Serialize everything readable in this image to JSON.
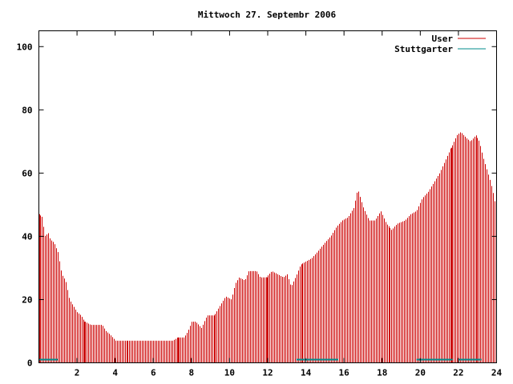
{
  "chart_data": {
    "type": "bar",
    "title": "Mittwoch 27. Septembr 2006",
    "xlabel": "",
    "ylabel": "",
    "xlim": [
      0,
      24
    ],
    "ylim": [
      0,
      105
    ],
    "x_ticks": [
      2,
      4,
      6,
      8,
      10,
      12,
      14,
      16,
      18,
      20,
      22,
      24
    ],
    "x_tick_labels": [
      "2",
      "4",
      "6",
      "8",
      "10",
      "12",
      "14",
      "16",
      "18",
      "20",
      "22",
      "24"
    ],
    "y_ticks": [
      0,
      20,
      40,
      60,
      80,
      100
    ],
    "y_tick_labels": [
      "0",
      "20",
      "40",
      "60",
      "80",
      "100"
    ],
    "grid": false,
    "legend_position": "top-right",
    "series": [
      {
        "name": "User",
        "color": "#cc0000",
        "keypoints": [
          [
            0.0,
            47
          ],
          [
            0.2,
            46
          ],
          [
            0.3,
            40
          ],
          [
            0.5,
            41
          ],
          [
            0.6,
            39
          ],
          [
            0.8,
            38
          ],
          [
            1.0,
            35
          ],
          [
            1.2,
            28
          ],
          [
            1.4,
            26
          ],
          [
            1.6,
            20
          ],
          [
            1.8,
            18
          ],
          [
            2.0,
            16
          ],
          [
            2.2,
            15
          ],
          [
            2.4,
            13
          ],
          [
            2.7,
            12
          ],
          [
            3.3,
            12
          ],
          [
            3.5,
            10
          ],
          [
            3.7,
            9
          ],
          [
            4.0,
            7
          ],
          [
            7.0,
            7
          ],
          [
            7.3,
            8
          ],
          [
            7.6,
            8
          ],
          [
            7.8,
            10
          ],
          [
            8.0,
            13
          ],
          [
            8.2,
            13
          ],
          [
            8.5,
            11
          ],
          [
            8.8,
            15
          ],
          [
            9.2,
            15
          ],
          [
            9.5,
            18
          ],
          [
            9.8,
            21
          ],
          [
            10.1,
            20
          ],
          [
            10.3,
            25
          ],
          [
            10.5,
            27
          ],
          [
            10.8,
            26
          ],
          [
            11.0,
            29
          ],
          [
            11.4,
            29
          ],
          [
            11.6,
            27
          ],
          [
            11.9,
            27
          ],
          [
            12.2,
            29
          ],
          [
            12.5,
            28
          ],
          [
            12.8,
            27
          ],
          [
            13.0,
            28
          ],
          [
            13.2,
            24
          ],
          [
            13.5,
            28
          ],
          [
            13.7,
            31
          ],
          [
            14.0,
            32
          ],
          [
            14.3,
            33
          ],
          [
            14.6,
            35
          ],
          [
            15.0,
            38
          ],
          [
            15.3,
            40
          ],
          [
            15.6,
            43
          ],
          [
            15.9,
            45
          ],
          [
            16.2,
            46
          ],
          [
            16.5,
            49
          ],
          [
            16.7,
            55
          ],
          [
            17.0,
            49
          ],
          [
            17.3,
            45
          ],
          [
            17.6,
            45
          ],
          [
            17.9,
            48
          ],
          [
            18.2,
            44
          ],
          [
            18.5,
            42
          ],
          [
            18.8,
            44
          ],
          [
            19.2,
            45
          ],
          [
            19.5,
            47
          ],
          [
            19.8,
            48
          ],
          [
            20.1,
            52
          ],
          [
            20.4,
            54
          ],
          [
            20.7,
            57
          ],
          [
            21.0,
            60
          ],
          [
            21.3,
            64
          ],
          [
            21.6,
            68
          ],
          [
            21.9,
            72
          ],
          [
            22.1,
            73
          ],
          [
            22.4,
            71
          ],
          [
            22.6,
            70
          ],
          [
            22.9,
            72
          ],
          [
            23.1,
            70
          ],
          [
            23.3,
            65
          ],
          [
            23.5,
            61
          ],
          [
            23.7,
            57
          ],
          [
            23.85,
            53
          ],
          [
            24.0,
            48
          ]
        ],
        "spikes": [
          {
            "x": 2.4,
            "y": 13
          },
          {
            "x": 7.3,
            "y": 8
          },
          {
            "x": 12.0,
            "y": 27
          },
          {
            "x": 21.65,
            "y": 68
          }
        ]
      },
      {
        "name": "Stuttgarter",
        "color": "#008b8b",
        "segments": [
          {
            "x0": 0.0,
            "x1": 1.0,
            "y": 1
          },
          {
            "x0": 13.5,
            "x1": 15.7,
            "y": 1
          },
          {
            "x0": 19.8,
            "x1": 21.7,
            "y": 1
          },
          {
            "x0": 22.0,
            "x1": 23.2,
            "y": 1
          }
        ]
      }
    ]
  }
}
